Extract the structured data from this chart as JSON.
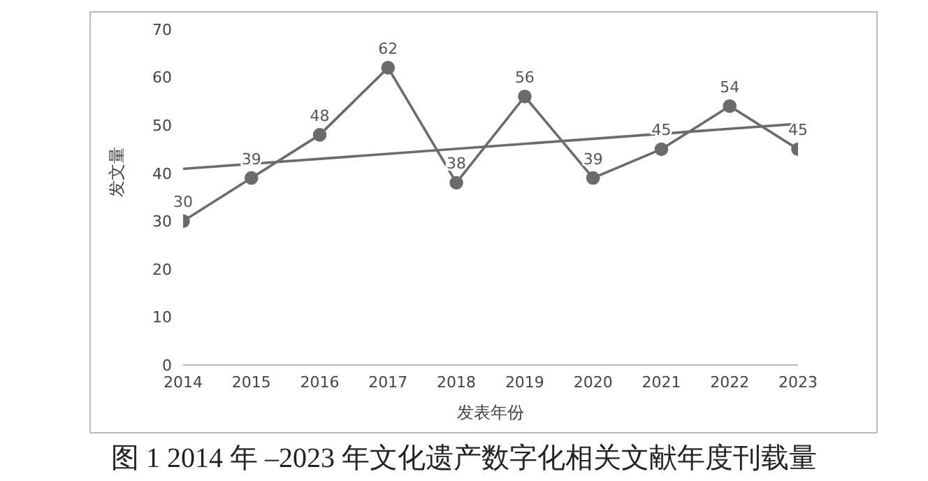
{
  "chart_data": {
    "type": "line",
    "title": "图 1 2014 年 –2023 年文化遗产数字化相关文献年度刊载量",
    "xlabel": "发表年份",
    "ylabel": "发文量",
    "xlim": [
      2014,
      2023
    ],
    "xticks": [
      2014,
      2015,
      2016,
      2017,
      2018,
      2019,
      2020,
      2021,
      2022,
      2023
    ],
    "ylim": [
      0,
      70
    ],
    "yticks": [
      0,
      10,
      20,
      30,
      40,
      50,
      60,
      70
    ],
    "grid": false,
    "series": [
      {
        "color": "#6b6b6b",
        "marker": "circle",
        "x": [
          2014,
          2015,
          2016,
          2017,
          2018,
          2019,
          2020,
          2021,
          2022,
          2023
        ],
        "values": [
          30,
          39,
          48,
          62,
          38,
          56,
          39,
          45,
          54,
          45
        ],
        "value_labels": [
          "30",
          "39",
          "48",
          "62",
          "38",
          "56",
          "39",
          "45",
          "54",
          "45"
        ]
      },
      {
        "type": "line",
        "color": "#6b6b6b",
        "marker": "none",
        "x": [
          2014,
          2023
        ],
        "values": [
          40.9,
          50.3
        ]
      }
    ]
  }
}
